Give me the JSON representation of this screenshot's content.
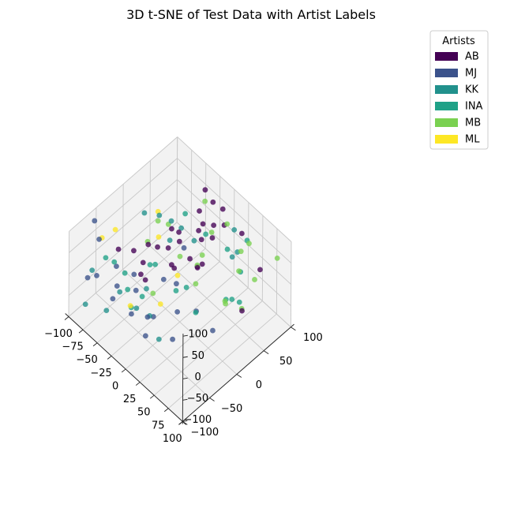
{
  "chart_data": {
    "type": "scatter",
    "title": "3D t-SNE of Test Data with Artist Labels",
    "legend": {
      "title": "Artists",
      "position": "top-right",
      "entries": [
        {
          "name": "AB",
          "color": "#440154"
        },
        {
          "name": "MJ",
          "color": "#3b528b"
        },
        {
          "name": "KK",
          "color": "#21918c"
        },
        {
          "name": "INA",
          "color": "#1fa187"
        },
        {
          "name": "MB",
          "color": "#7ad151"
        },
        {
          "name": "ML",
          "color": "#fde725"
        }
      ]
    },
    "axes": {
      "x": {
        "range": [
          -100,
          100
        ],
        "ticks": [
          "−100",
          "−75",
          "−50",
          "−25",
          "0",
          "25",
          "50",
          "75",
          "100"
        ]
      },
      "y": {
        "range": [
          -100,
          100
        ],
        "ticks": [
          "−100",
          "−50",
          "0",
          "50",
          "100"
        ]
      },
      "z": {
        "range": [
          -100,
          100
        ],
        "ticks": [
          "−100",
          "−50",
          "0",
          "50",
          "100"
        ]
      }
    },
    "grid": true,
    "series": [
      {
        "name": "AB",
        "color": "#440154",
        "points": [
          [
            -25,
            24,
            53
          ],
          [
            -15,
            58,
            47
          ],
          [
            -8,
            48,
            30
          ],
          [
            -3,
            82,
            70
          ],
          [
            -30,
            66,
            4
          ],
          [
            -37,
            -20,
            58
          ],
          [
            -12,
            48,
            92
          ],
          [
            -24,
            86,
            56
          ],
          [
            3,
            15,
            35
          ],
          [
            -34,
            82,
            77
          ],
          [
            -21,
            -42,
            19
          ],
          [
            22,
            9,
            44
          ],
          [
            -17,
            80,
            17
          ],
          [
            -22,
            22,
            37
          ],
          [
            -6,
            88,
            22
          ],
          [
            10,
            49,
            55
          ],
          [
            -34,
            14,
            16
          ],
          [
            -42,
            -24,
            14
          ],
          [
            3,
            -14,
            45
          ],
          [
            -32,
            -8,
            45
          ],
          [
            -57,
            -54,
            60
          ],
          [
            -27,
            -44,
            27
          ],
          [
            38,
            74,
            72
          ],
          [
            -32,
            18,
            59
          ],
          [
            3,
            38,
            -3
          ],
          [
            0,
            32,
            -6
          ],
          [
            -28,
            14,
            -16
          ],
          [
            -50,
            -33,
            42
          ],
          [
            86,
            24,
            5
          ],
          [
            89,
            54,
            72
          ]
        ]
      },
      {
        "name": "MJ",
        "color": "#3b528b",
        "points": [
          [
            -99,
            -54,
            75
          ],
          [
            -67,
            -47,
            0
          ],
          [
            -91,
            -58,
            -39
          ],
          [
            -54,
            -28,
            -24
          ],
          [
            -60,
            -53,
            -31
          ],
          [
            -72,
            -74,
            87
          ],
          [
            -87,
            -79,
            -16
          ],
          [
            -57,
            -21,
            -73
          ],
          [
            -27,
            22,
            -68
          ],
          [
            -57,
            -64,
            -45
          ],
          [
            -30,
            -58,
            -54
          ],
          [
            -6,
            -57,
            -77
          ],
          [
            -14,
            -45,
            -56
          ],
          [
            -16,
            -32,
            -72
          ],
          [
            52,
            6,
            -63
          ],
          [
            -5,
            -25,
            21
          ],
          [
            -31,
            40,
            -9
          ],
          [
            13,
            -27,
            -95
          ],
          [
            6,
            -11,
            -57
          ],
          [
            24,
            5,
            -51
          ]
        ]
      },
      {
        "name": "KK",
        "color": "#21918c",
        "points": [
          [
            -83,
            -75,
            2
          ],
          [
            -60,
            -3,
            85
          ],
          [
            37,
            67,
            35
          ],
          [
            40,
            -81,
            -2
          ],
          [
            -59,
            -49,
            -48
          ],
          [
            -49,
            13,
            75
          ],
          [
            -68,
            -64,
            -86
          ],
          [
            -4,
            -58,
            37
          ],
          [
            -85,
            -85,
            -69
          ],
          [
            -40,
            -38,
            -75
          ],
          [
            -15,
            -40,
            -60
          ],
          [
            12,
            84,
            -26
          ],
          [
            35,
            63,
            89
          ],
          [
            -27,
            12,
            90
          ],
          [
            -34,
            38,
            36
          ],
          [
            -36,
            19,
            26
          ],
          [
            -19,
            46,
            16
          ]
        ]
      },
      {
        "name": "INA",
        "color": "#1fa187",
        "points": [
          [
            36,
            86,
            40
          ],
          [
            -31,
            42,
            69
          ],
          [
            -97,
            -35,
            -30
          ],
          [
            -51,
            -68,
            53
          ],
          [
            -65,
            -28,
            -73
          ],
          [
            -51,
            -36,
            -89
          ],
          [
            12,
            -20,
            10
          ],
          [
            52,
            57,
            18
          ],
          [
            -10,
            58,
            29
          ],
          [
            -29,
            -25,
            26
          ],
          [
            -39,
            -61,
            34
          ],
          [
            57,
            36,
            -17
          ],
          [
            -34,
            -10,
            4
          ],
          [
            57,
            25,
            -5
          ],
          [
            72,
            34,
            -3
          ],
          [
            -32,
            -36,
            -40
          ],
          [
            24,
            4,
            -53
          ],
          [
            27,
            59,
            38
          ],
          [
            -16,
            29,
            -71
          ]
        ]
      },
      {
        "name": "MB",
        "color": "#7ad151",
        "points": [
          [
            -65,
            47,
            -3
          ],
          [
            -40,
            -18,
            59
          ],
          [
            -23,
            70,
            77
          ],
          [
            -11,
            70,
            19
          ],
          [
            14,
            72,
            67
          ],
          [
            -1,
            -49,
            20
          ],
          [
            -38,
            -1,
            91
          ],
          [
            16,
            15,
            36
          ],
          [
            61,
            63,
            89
          ],
          [
            51,
            55,
            21
          ],
          [
            75,
            5,
            29
          ],
          [
            -15,
            57,
            -25
          ],
          [
            -4,
            4,
            44
          ],
          [
            46,
            64,
            51
          ],
          [
            20,
            8,
            5
          ],
          [
            62,
            49,
            -47
          ],
          [
            85,
            90,
            54
          ],
          [
            72,
            62,
            19
          ],
          [
            59,
            21,
            -2
          ]
        ]
      },
      {
        "name": "ML",
        "color": "#fde725",
        "points": [
          [
            -83,
            -57,
            58
          ],
          [
            -88,
            -27,
            38
          ],
          [
            -65,
            29,
            -13
          ],
          [
            -31,
            -59,
            -35
          ],
          [
            -39,
            37,
            -80
          ],
          [
            -31,
            -3,
            -93
          ],
          [
            -70,
            33,
            36
          ]
        ]
      }
    ]
  }
}
